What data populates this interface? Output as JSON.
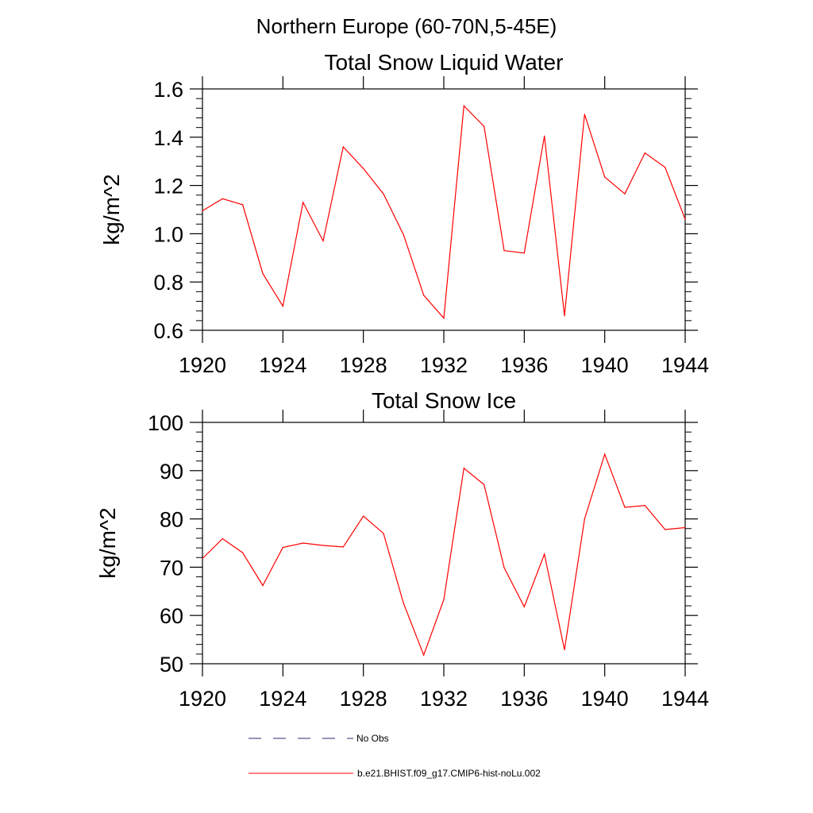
{
  "figure_title": "Northern Europe (60-70N,5-45E)",
  "legend": [
    {
      "label": "No Obs",
      "color": "#2b2b6b",
      "dash": "dashed"
    },
    {
      "label": "b.e21.BHIST.f09_g17.CMIP6-hist-noLu.002",
      "color": "#ff0000",
      "dash": "solid"
    }
  ],
  "chart_data": [
    {
      "type": "line",
      "title": "Total Snow Liquid Water",
      "xlabel": "",
      "ylabel": "kg/m^2",
      "xlim": [
        1920,
        1944
      ],
      "ylim": [
        0.6,
        1.6
      ],
      "grid": false,
      "x_ticks": [
        1920,
        1924,
        1928,
        1932,
        1936,
        1940,
        1944
      ],
      "y_ticks": [
        0.6,
        0.8,
        1.0,
        1.2,
        1.4,
        1.6
      ],
      "y_tick_labels": [
        "0.6",
        "0.8",
        "1.0",
        "1.2",
        "1.4",
        "1.6"
      ],
      "series": [
        {
          "name": "b.e21.BHIST.f09_g17.CMIP6-hist-noLu.002",
          "color": "#ff0000",
          "x": [
            1920,
            1921,
            1922,
            1923,
            1924,
            1925,
            1926,
            1927,
            1928,
            1929,
            1930,
            1931,
            1932,
            1933,
            1934,
            1935,
            1936,
            1937,
            1938,
            1939,
            1940,
            1941,
            1942,
            1943,
            1944
          ],
          "y": [
            1.095,
            1.145,
            1.12,
            0.835,
            0.7,
            1.13,
            0.97,
            1.36,
            1.27,
            1.165,
            0.995,
            0.745,
            0.65,
            1.53,
            1.445,
            0.93,
            0.92,
            1.405,
            0.66,
            1.495,
            1.235,
            1.165,
            1.335,
            1.275,
            1.06
          ]
        }
      ]
    },
    {
      "type": "line",
      "title": "Total Snow Ice",
      "xlabel": "",
      "ylabel": "kg/m^2",
      "xlim": [
        1920,
        1944
      ],
      "ylim": [
        50,
        100
      ],
      "grid": false,
      "x_ticks": [
        1920,
        1924,
        1928,
        1932,
        1936,
        1940,
        1944
      ],
      "y_ticks": [
        50,
        60,
        70,
        80,
        90,
        100
      ],
      "y_tick_labels": [
        "50",
        "60",
        "70",
        "80",
        "90",
        "100"
      ],
      "series": [
        {
          "name": "b.e21.BHIST.f09_g17.CMIP6-hist-noLu.002",
          "color": "#ff0000",
          "x": [
            1920,
            1921,
            1922,
            1923,
            1924,
            1925,
            1926,
            1927,
            1928,
            1929,
            1930,
            1931,
            1932,
            1933,
            1934,
            1935,
            1936,
            1937,
            1938,
            1939,
            1940,
            1941,
            1942,
            1943,
            1944
          ],
          "y": [
            71.8,
            75.9,
            73.0,
            66.2,
            74.1,
            75.0,
            74.5,
            74.2,
            80.6,
            77.0,
            62.5,
            51.8,
            63.3,
            90.5,
            87.1,
            69.9,
            61.8,
            72.7,
            52.9,
            80.0,
            93.4,
            82.4,
            82.8,
            77.8,
            78.2
          ]
        }
      ]
    }
  ]
}
